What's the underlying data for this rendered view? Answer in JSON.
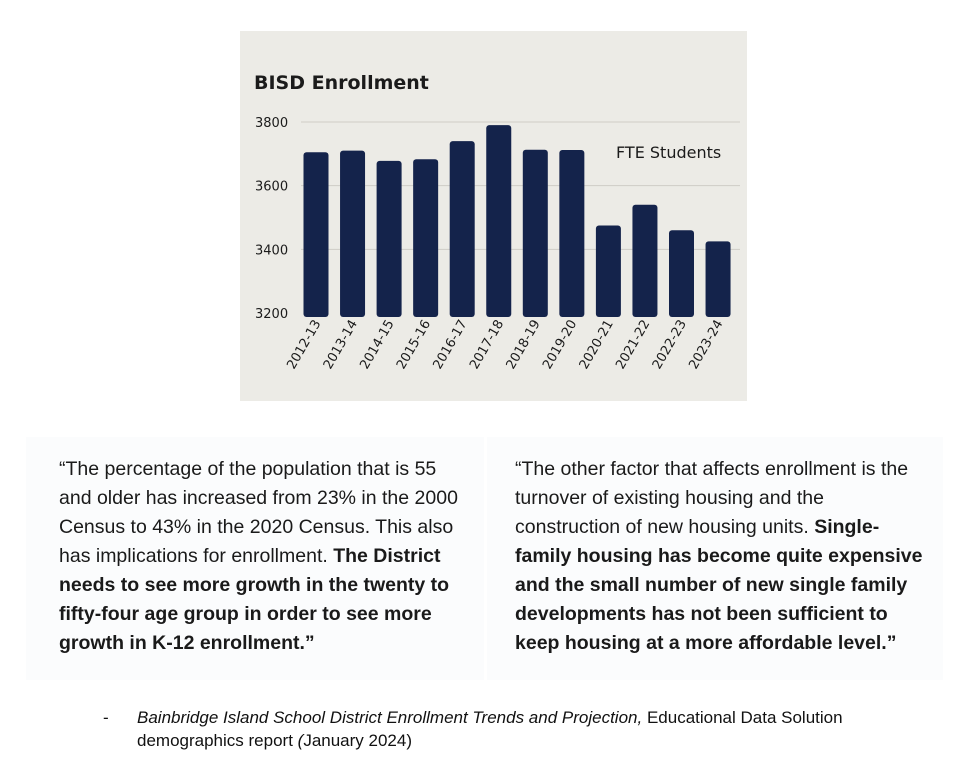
{
  "chart_data": {
    "type": "bar",
    "title": "BISD Enrollment",
    "series_label": "FTE Students",
    "categories": [
      "2012-13",
      "2013-14",
      "2014-15",
      "2015-16",
      "2016-17",
      "2017-18",
      "2018-19",
      "2019-20",
      "2020-21",
      "2021-22",
      "2022-23",
      "2023-24"
    ],
    "values": [
      3705,
      3710,
      3678,
      3683,
      3740,
      3790,
      3713,
      3712,
      3475,
      3540,
      3460,
      3425
    ],
    "yticks": [
      3200,
      3400,
      3600,
      3800
    ],
    "ylim": [
      3200,
      3830
    ],
    "grid": true,
    "bar_color": "#14234b"
  },
  "quotes": {
    "left": {
      "plain": "“The percentage of the population that is 55 and older has increased from 23% in the 2000 Census to 43% in the 2020 Census. This also has implications for enrollment. ",
      "bold": "The District needs to see more growth in the twenty to fifty-four age group in order to see more growth in K-12 enrollment.”"
    },
    "right": {
      "plain": "“The other factor that affects enrollment is the turnover of existing housing and the construction of new housing units. ",
      "bold": "Single-family housing has become quite expensive and the small number of new single family developments has not been sufficient to keep housing at a more affordable level.”"
    }
  },
  "citation": {
    "dash": "-",
    "title_italic": "Bainbridge Island School District Enrollment Trends and Projection,",
    "rest": " Educational Data Solution demographics report ",
    "paren_open": "(",
    "date": "January 2024)"
  }
}
